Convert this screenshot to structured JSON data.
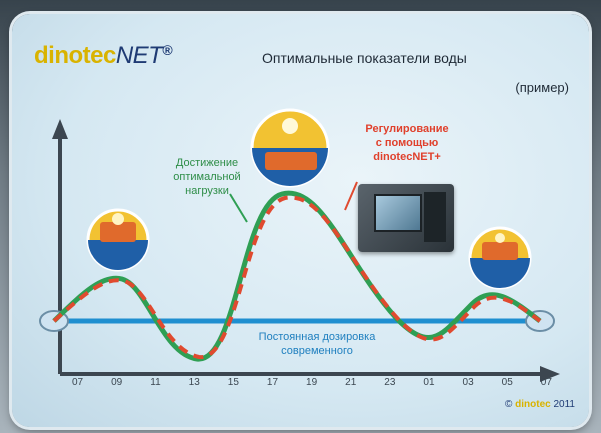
{
  "logo": {
    "brand": "dinotec",
    "suffix": "NET",
    "mark": "®"
  },
  "title": "Оптимальные показатели воды",
  "subtitle": "(пример)",
  "annotations": {
    "green_curve": "Достижение\nоптимальной\nнагрузки",
    "red_curve": "Регулирование\nс помощью\ndinotecNET+",
    "blue_line": "Постоянная дозировка\nсовременного"
  },
  "x_ticks": [
    "07",
    "09",
    "11",
    "13",
    "15",
    "17",
    "19",
    "21",
    "23",
    "01",
    "03",
    "05",
    "07"
  ],
  "copyright": {
    "prefix": "©",
    "brand": "dinotec",
    "suffix": "2011"
  },
  "colors": {
    "green": "#2f9f54",
    "red": "#e04a2f",
    "blue": "#1f8fd0",
    "axis": "#3c4650"
  },
  "icons": {
    "sun": "sun-icon",
    "pool": "pool-icon",
    "device": "controller-device-icon"
  }
}
